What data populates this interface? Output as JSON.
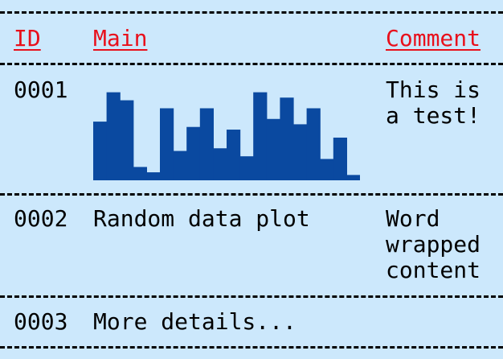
{
  "table": {
    "headers": {
      "id": "ID",
      "main": "Main",
      "comment": "Comment"
    },
    "rows": [
      {
        "id": "0001",
        "comment_lines": [
          "This is",
          "a test!"
        ],
        "plot": {
          "color": "#0a49a0",
          "values": [
            2.2,
            3.3,
            3.0,
            0.5,
            0.3,
            2.7,
            1.1,
            2.0,
            2.7,
            1.2,
            1.9,
            0.9,
            3.3,
            2.3,
            3.1,
            2.1,
            2.7,
            0.8,
            1.6,
            0.2
          ]
        }
      },
      {
        "id": "0002",
        "main": "Random data plot",
        "comment_lines": [
          "Word",
          "wrapped",
          "content"
        ]
      },
      {
        "id": "0003",
        "main": "More details..."
      }
    ]
  }
}
